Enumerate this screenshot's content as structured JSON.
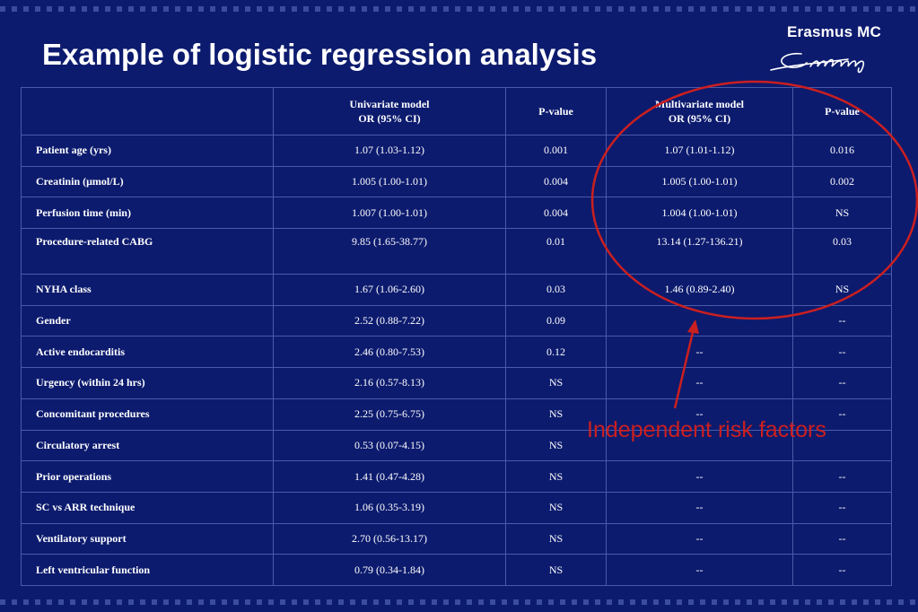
{
  "title": "Example of logistic regression analysis",
  "logo": {
    "name": "Erasmus MC"
  },
  "table": {
    "headers": {
      "variable": "",
      "uni_line1": "Univariate model",
      "uni_line2": "OR (95% CI)",
      "uni_p": "P-value",
      "multi_line1": "Multivariate model",
      "multi_line2": "OR (95% CI)",
      "multi_p": "P-value"
    },
    "rows": [
      {
        "label": "Patient age (yrs)",
        "uni_or": "1.07 (1.03-1.12)",
        "uni_p": "0.001",
        "multi_or": "1.07 (1.01-1.12)",
        "multi_p": "0.016"
      },
      {
        "label": "Creatinin (μmol/L)",
        "uni_or": "1.005 (1.00-1.01)",
        "uni_p": "0.004",
        "multi_or": "1.005 (1.00-1.01)",
        "multi_p": "0.002"
      },
      {
        "label": "Perfusion time (min)",
        "uni_or": "1.007 (1.00-1.01)",
        "uni_p": "0.004",
        "multi_or": "1.004 (1.00-1.01)",
        "multi_p": "NS"
      },
      {
        "label": "Procedure-related CABG",
        "uni_or": "9.85 (1.65-38.77)",
        "uni_p": "0.01",
        "multi_or": "13.14 (1.27-136.21)",
        "multi_p": "0.03"
      },
      {
        "label": "NYHA class",
        "uni_or": "1.67 (1.06-2.60)",
        "uni_p": "0.03",
        "multi_or": "1.46 (0.89-2.40)",
        "multi_p": "NS"
      },
      {
        "label": "Gender",
        "uni_or": "2.52 (0.88-7.22)",
        "uni_p": "0.09",
        "multi_or": "",
        "multi_p": "--"
      },
      {
        "label": "Active endocarditis",
        "uni_or": "2.46 (0.80-7.53)",
        "uni_p": "0.12",
        "multi_or": "--",
        "multi_p": "--"
      },
      {
        "label": "Urgency (within 24 hrs)",
        "uni_or": "2.16 (0.57-8.13)",
        "uni_p": "NS",
        "multi_or": "--",
        "multi_p": "--"
      },
      {
        "label": "Concomitant procedures",
        "uni_or": "2.25 (0.75-6.75)",
        "uni_p": "NS",
        "multi_or": "--",
        "multi_p": "--"
      },
      {
        "label": "Circulatory arrest",
        "uni_or": "0.53 (0.07-4.15)",
        "uni_p": "NS",
        "multi_or": "",
        "multi_p": ""
      },
      {
        "label": "Prior operations",
        "uni_or": "1.41 (0.47-4.28)",
        "uni_p": "NS",
        "multi_or": "--",
        "multi_p": "--"
      },
      {
        "label": "SC vs ARR technique",
        "uni_or": "1.06 (0.35-3.19)",
        "uni_p": "NS",
        "multi_or": "--",
        "multi_p": "--"
      },
      {
        "label": "Ventilatory support",
        "uni_or": "2.70 (0.56-13.17)",
        "uni_p": "NS",
        "multi_or": "--",
        "multi_p": "--"
      },
      {
        "label": "Left ventricular function",
        "uni_or": "0.79 (0.34-1.84)",
        "uni_p": "NS",
        "multi_or": "--",
        "multi_p": "--"
      }
    ]
  },
  "annotation": {
    "text": "Independent risk factors",
    "color": "#cc1f1f"
  },
  "colors": {
    "background": "#0c1b6e",
    "grid": "#4b5aa8",
    "text": "#ffffff"
  }
}
